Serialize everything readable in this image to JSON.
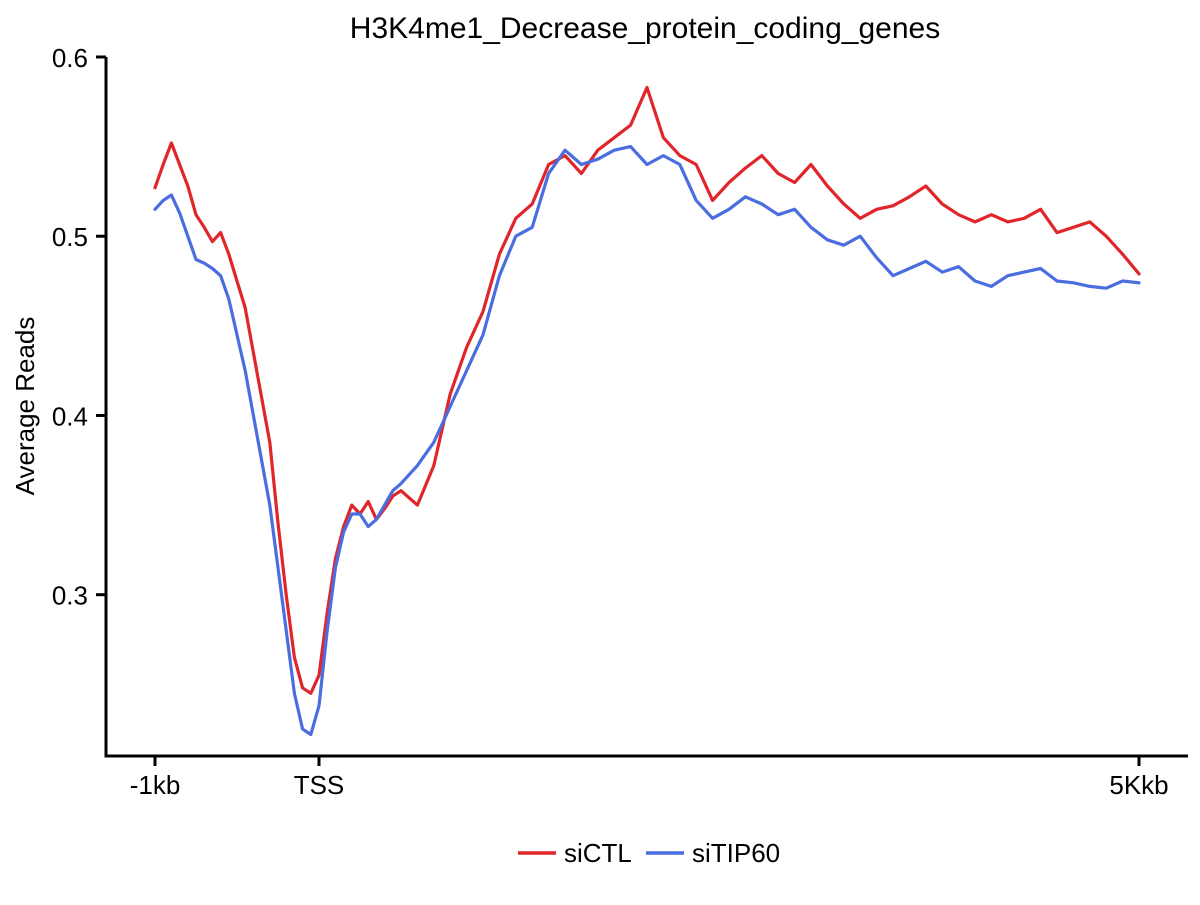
{
  "chart_data": {
    "type": "line",
    "title": "H3K4me1_Decrease_protein_coding_genes",
    "xlabel": "",
    "ylabel": "Average Reads",
    "xlim": [
      -1000,
      5000
    ],
    "ylim": [
      0.21,
      0.6
    ],
    "x_ticks": [
      {
        "value": -1000,
        "label": "-1kb"
      },
      {
        "value": 0,
        "label": "TSS"
      },
      {
        "value": 5000,
        "label": "5Kkb"
      }
    ],
    "y_ticks": [
      {
        "value": 0.3,
        "label": "0.3"
      },
      {
        "value": 0.4,
        "label": "0.4"
      },
      {
        "value": 0.5,
        "label": "0.5"
      },
      {
        "value": 0.6,
        "label": "0.6"
      }
    ],
    "legend_position": "bottom",
    "x": [
      -1000,
      -950,
      -900,
      -850,
      -800,
      -750,
      -700,
      -650,
      -600,
      -550,
      -500,
      -450,
      -400,
      -350,
      -300,
      -250,
      -200,
      -150,
      -100,
      -50,
      0,
      50,
      100,
      150,
      200,
      250,
      300,
      350,
      400,
      450,
      500,
      600,
      700,
      800,
      900,
      1000,
      1100,
      1200,
      1300,
      1400,
      1500,
      1600,
      1700,
      1800,
      1900,
      2000,
      2100,
      2200,
      2300,
      2400,
      2500,
      2600,
      2700,
      2800,
      2900,
      3000,
      3100,
      3200,
      3300,
      3400,
      3500,
      3600,
      3700,
      3800,
      3900,
      4000,
      4100,
      4200,
      4300,
      4400,
      4500,
      4600,
      4700,
      4800,
      4900,
      5000
    ],
    "series": [
      {
        "name": "siCTL",
        "color": "#e0262b",
        "values": [
          0.527,
          0.54,
          0.552,
          0.54,
          0.528,
          0.512,
          0.505,
          0.497,
          0.502,
          0.49,
          0.475,
          0.46,
          0.435,
          0.41,
          0.385,
          0.34,
          0.3,
          0.265,
          0.248,
          0.245,
          0.255,
          0.29,
          0.32,
          0.338,
          0.35,
          0.345,
          0.352,
          0.342,
          0.348,
          0.355,
          0.358,
          0.35,
          0.372,
          0.412,
          0.438,
          0.458,
          0.49,
          0.51,
          0.518,
          0.54,
          0.545,
          0.535,
          0.548,
          0.555,
          0.562,
          0.583,
          0.555,
          0.545,
          0.54,
          0.52,
          0.53,
          0.538,
          0.545,
          0.535,
          0.53,
          0.54,
          0.528,
          0.518,
          0.51,
          0.515,
          0.517,
          0.522,
          0.528,
          0.518,
          0.512,
          0.508,
          0.512,
          0.508,
          0.51,
          0.515,
          0.502,
          0.505,
          0.508,
          0.5,
          0.49,
          0.479
        ]
      },
      {
        "name": "siTIP60",
        "color": "#4a6de0",
        "values": [
          0.515,
          0.52,
          0.523,
          0.513,
          0.5,
          0.487,
          0.485,
          0.482,
          0.478,
          0.465,
          0.445,
          0.425,
          0.4,
          0.375,
          0.35,
          0.315,
          0.28,
          0.245,
          0.225,
          0.222,
          0.238,
          0.28,
          0.315,
          0.335,
          0.345,
          0.345,
          0.338,
          0.342,
          0.35,
          0.358,
          0.362,
          0.372,
          0.385,
          0.405,
          0.425,
          0.445,
          0.478,
          0.5,
          0.505,
          0.535,
          0.548,
          0.54,
          0.543,
          0.548,
          0.55,
          0.54,
          0.545,
          0.54,
          0.52,
          0.51,
          0.515,
          0.522,
          0.518,
          0.512,
          0.515,
          0.505,
          0.498,
          0.495,
          0.5,
          0.488,
          0.478,
          0.482,
          0.486,
          0.48,
          0.483,
          0.475,
          0.472,
          0.478,
          0.48,
          0.482,
          0.475,
          0.474,
          0.472,
          0.471,
          0.475,
          0.474
        ]
      }
    ]
  }
}
